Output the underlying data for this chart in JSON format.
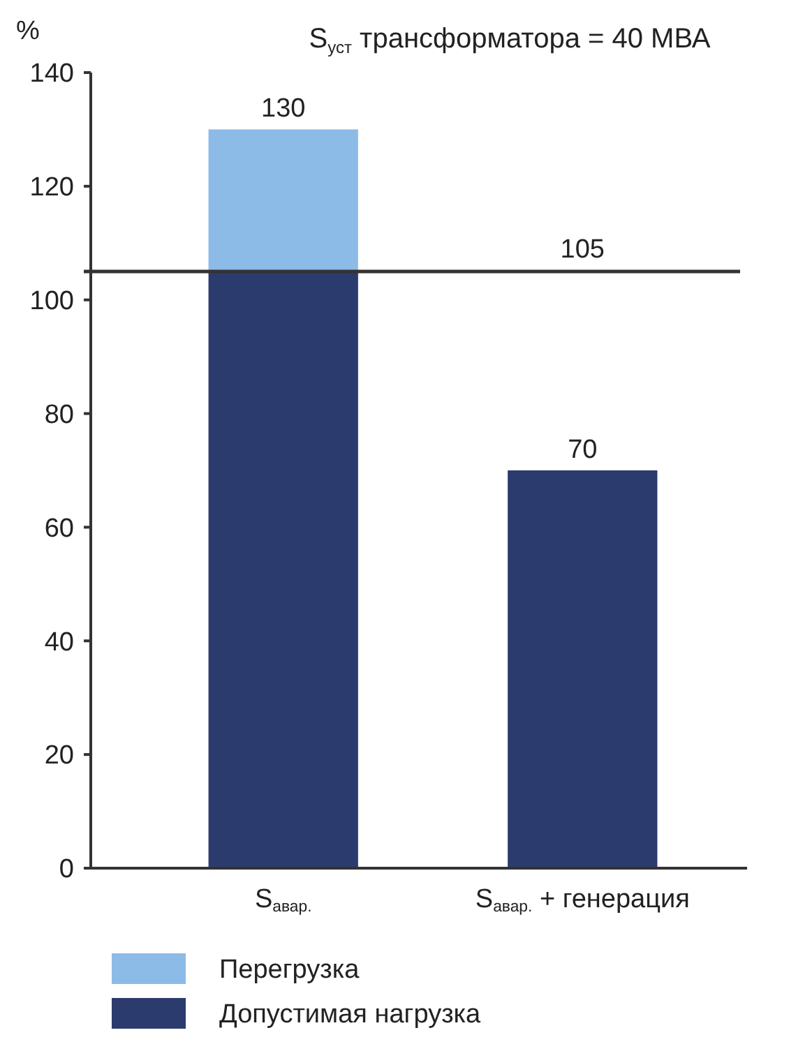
{
  "chart_data": {
    "type": "bar",
    "title": "S$_{уст}$ трансформатора = 40 МВА",
    "ylabel": "%",
    "categories": [
      "S$_{авар.}$",
      "S$_{авар.}$ + генерация"
    ],
    "stacked": true,
    "series": [
      {
        "name": "Допустимая нагрузка",
        "color": "#2c3b6e",
        "values": [
          105,
          70
        ]
      },
      {
        "name": "Перегрузка",
        "color": "#8dbbe8",
        "values": [
          25,
          null
        ]
      }
    ],
    "totals": [
      "130",
      "70"
    ],
    "ref_lines": [
      {
        "axis": "y",
        "value": 105,
        "label": "105",
        "color": "#333333"
      }
    ],
    "ylim": [
      0,
      140
    ],
    "yticks": [
      0,
      20,
      40,
      60,
      80,
      100,
      120,
      140
    ],
    "legend": "bottom"
  }
}
